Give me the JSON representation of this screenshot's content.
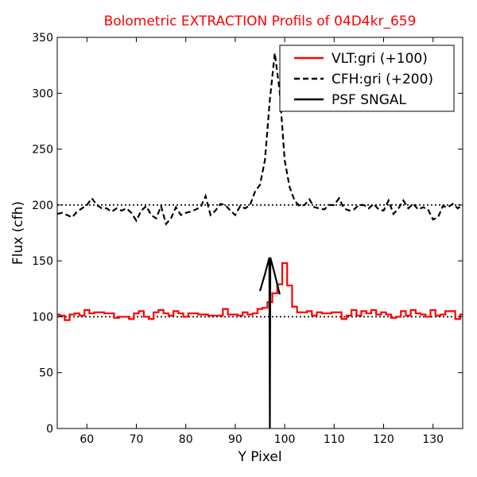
{
  "chart_data": {
    "type": "line",
    "title": "Bolometric EXTRACTION Profils of 04D4kr_659",
    "title_color": "#ff0000",
    "xlabel": "Y Pixel",
    "ylabel": "Flux (cfh)",
    "xlim": [
      54,
      136
    ],
    "ylim": [
      0,
      350
    ],
    "xticks": [
      60,
      70,
      80,
      90,
      100,
      110,
      120,
      130
    ],
    "yticks": [
      0,
      50,
      100,
      150,
      200,
      250,
      300,
      350
    ],
    "legend_position": "top-right",
    "reference_lines": [
      {
        "y": 200,
        "style": "dotted",
        "color": "#000000"
      },
      {
        "y": 100,
        "style": "dotted",
        "color": "#000000"
      }
    ],
    "series": [
      {
        "name": "VLT:gri (+100)",
        "style": "steps",
        "color": "#ff0000",
        "x": [
          54,
          55,
          56,
          57,
          58,
          59,
          60,
          61,
          62,
          63,
          64,
          65,
          66,
          67,
          68,
          69,
          70,
          71,
          72,
          73,
          74,
          75,
          76,
          77,
          78,
          79,
          80,
          81,
          82,
          83,
          84,
          85,
          86,
          87,
          88,
          89,
          90,
          91,
          92,
          93,
          94,
          95,
          96,
          97,
          98,
          99,
          100,
          101,
          102,
          103,
          104,
          105,
          106,
          107,
          108,
          109,
          110,
          111,
          112,
          113,
          114,
          115,
          116,
          117,
          118,
          119,
          120,
          121,
          122,
          123,
          124,
          125,
          126,
          127,
          128,
          129,
          130,
          131,
          132,
          133,
          134,
          135,
          136
        ],
        "y": [
          102,
          101,
          97,
          102,
          103,
          101,
          106,
          103,
          104,
          104,
          103,
          103,
          99,
          100,
          100,
          98,
          103,
          105,
          100,
          98,
          104,
          106,
          103,
          101,
          105,
          103,
          100,
          103,
          103,
          102,
          102,
          101,
          101,
          101,
          107,
          102,
          102,
          101,
          104,
          102,
          103,
          107,
          108,
          113,
          121,
          129,
          148,
          128,
          109,
          104,
          104,
          105,
          101,
          104,
          103,
          103,
          104,
          104,
          98,
          101,
          106,
          101,
          105,
          103,
          106,
          102,
          104,
          102,
          99,
          100,
          105,
          101,
          106,
          103,
          102,
          100,
          106,
          101,
          102,
          105,
          105,
          98,
          102
        ]
      },
      {
        "name": "CFH:gri (+200)",
        "style": "dashed",
        "color": "#000000",
        "x": [
          54,
          55,
          56,
          57,
          58,
          59,
          60,
          61,
          62,
          63,
          64,
          65,
          66,
          67,
          68,
          69,
          70,
          71,
          72,
          73,
          74,
          75,
          76,
          77,
          78,
          79,
          80,
          81,
          82,
          83,
          84,
          85,
          86,
          87,
          88,
          89,
          90,
          91,
          92,
          93,
          94,
          95,
          96,
          97,
          98,
          99,
          100,
          101,
          102,
          103,
          104,
          105,
          106,
          107,
          108,
          109,
          110,
          111,
          112,
          113,
          114,
          115,
          116,
          117,
          118,
          119,
          120,
          121,
          122,
          123,
          124,
          125,
          126,
          127,
          128,
          129,
          130,
          131,
          132,
          133,
          134,
          135,
          136
        ],
        "y": [
          192,
          193,
          191,
          189,
          194,
          197,
          200,
          206,
          200,
          197,
          197,
          194,
          197,
          195,
          197,
          193,
          186,
          195,
          199,
          191,
          188,
          199,
          183,
          188,
          198,
          191,
          193,
          194,
          196,
          198,
          208,
          191,
          195,
          201,
          200,
          195,
          191,
          199,
          197,
          200,
          212,
          218,
          240,
          294,
          336,
          301,
          240,
          216,
          204,
          199,
          200,
          205,
          198,
          197,
          196,
          200,
          200,
          206,
          197,
          195,
          196,
          200,
          200,
          197,
          201,
          196,
          195,
          204,
          192,
          197,
          204,
          197,
          201,
          196,
          198,
          196,
          187,
          189,
          199,
          198,
          201,
          197,
          200
        ]
      },
      {
        "name": "PSF SNGAL",
        "style": "solid",
        "color": "#000000",
        "x": [
          95,
          96,
          96.9,
          97,
          97.1,
          98,
          99
        ],
        "y": [
          123,
          138,
          153,
          0,
          153,
          138,
          120
        ]
      }
    ]
  }
}
